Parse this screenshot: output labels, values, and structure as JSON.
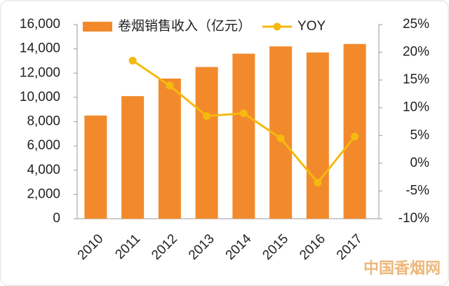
{
  "chart_data": {
    "type": "bar",
    "categories": [
      "2010",
      "2011",
      "2012",
      "2013",
      "2014",
      "2015",
      "2016",
      "2017"
    ],
    "series": [
      {
        "name": "卷烟销售收入（亿元）",
        "type": "bar",
        "color": "#f28a2c",
        "values": [
          8500,
          10100,
          11550,
          12500,
          13600,
          14200,
          13700,
          14400
        ]
      },
      {
        "name": "YOY",
        "type": "line",
        "axis": "y2",
        "color": "#f5b90f",
        "values": [
          null,
          18.5,
          14,
          8.5,
          9,
          4.5,
          -3.5,
          4.8
        ]
      }
    ],
    "ylim": [
      0,
      16000
    ],
    "yticks": [
      0,
      {
        "value": 2000,
        "label": "2,000"
      },
      {
        "value": 4000,
        "label": "4,000"
      },
      {
        "value": 6000,
        "label": "6,000"
      },
      {
        "value": 8000,
        "label": "8,000"
      },
      {
        "value": 10000,
        "label": "10,000"
      },
      {
        "value": 12000,
        "label": "12,000"
      },
      {
        "value": 14000,
        "label": "14,000"
      },
      {
        "value": 16000,
        "label": "16,000"
      }
    ],
    "y2lim": [
      -10,
      25
    ],
    "y2ticks": [
      {
        "value": -10,
        "label": "-10%"
      },
      {
        "value": -5,
        "label": "-5%"
      },
      {
        "value": 0,
        "label": "0%"
      },
      {
        "value": 5,
        "label": "5%"
      },
      {
        "value": 10,
        "label": "10%"
      },
      {
        "value": 15,
        "label": "15%"
      },
      {
        "value": 20,
        "label": "20%"
      },
      {
        "value": 25,
        "label": "25%"
      }
    ],
    "legend": "top",
    "watermark": "中国香烟网"
  }
}
